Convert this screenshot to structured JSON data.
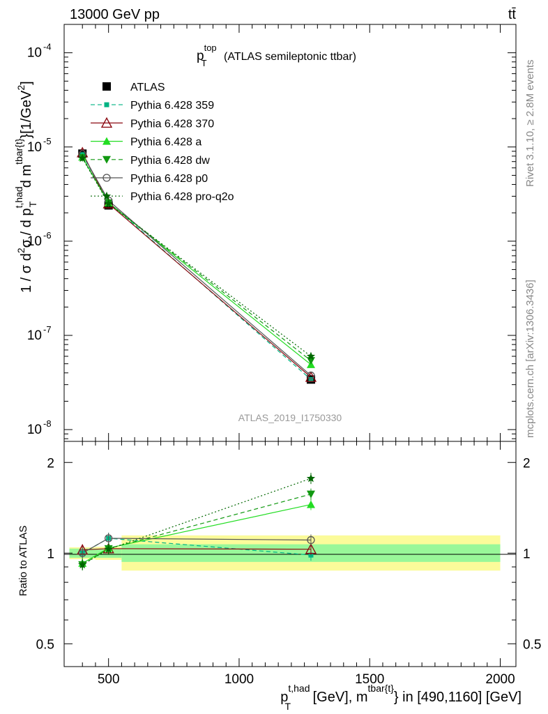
{
  "header": {
    "left": "13000 GeV pp",
    "right": "tt̄"
  },
  "side_labels": {
    "rivet": "Rivet 3.1.10, ≥ 2.8M events",
    "mcplots": "mcplots.cern.ch [arXiv:1306.3436]"
  },
  "watermark": "ATLAS_2019_I1750330",
  "colors": {
    "ATLAS": "#000000",
    "Pythia 6.428 359": "#00b383",
    "Pythia 6.428 370": "#8b0a12",
    "Pythia 6.428 a": "#22dd22",
    "Pythia 6.428 dw": "#119911",
    "Pythia 6.428 p0": "#555555",
    "Pythia 6.428 pro-q2o": "#006600",
    "band_inner": "#99f799",
    "band_outer": "#fbfb9a"
  },
  "chart_data": [
    {
      "type": "line",
      "panel": "main",
      "title_main": "p",
      "title_sup": "top",
      "title_sub": "T",
      "title_rest": "(ATLAS semileptonic ttbar)",
      "ylabel": "1 / σ d²σ / d pT^t,had d m^tbar{t} [1/GeV²]",
      "yscale": "log",
      "ylim": [
        7.5e-09,
        0.0002
      ],
      "xlim": [
        330,
        2060
      ],
      "y_ticks": [
        {
          "value": 1e-08,
          "exp": "-8"
        },
        {
          "value": 1e-07,
          "exp": "-7"
        },
        {
          "value": 1e-06,
          "exp": "-6"
        },
        {
          "value": 1e-05,
          "exp": "-5"
        },
        {
          "value": 0.0001,
          "exp": "-4"
        }
      ],
      "legend_position": "top-left",
      "x": [
        400,
        500,
        1275
      ],
      "series": [
        {
          "name": "ATLAS",
          "values": [
            8.5e-06,
            2.4e-06,
            3.4e-08
          ],
          "marker": "square-filled",
          "line": "none"
        },
        {
          "name": "Pythia 6.428 359",
          "values": [
            8.3e-06,
            2.6e-06,
            3.4e-08
          ],
          "marker": "square-small",
          "line": "dashed"
        },
        {
          "name": "Pythia 6.428 370",
          "values": [
            8.7e-06,
            2.5e-06,
            3.6e-08
          ],
          "marker": "triangle-open",
          "line": "solid"
        },
        {
          "name": "Pythia 6.428 a",
          "values": [
            7.8e-06,
            2.55e-06,
            4.9e-08
          ],
          "marker": "triangle-filled",
          "line": "solid"
        },
        {
          "name": "Pythia 6.428 dw",
          "values": [
            7.7e-06,
            2.55e-06,
            5.4e-08
          ],
          "marker": "triangle-down-filled",
          "line": "dashed"
        },
        {
          "name": "Pythia 6.428 p0",
          "values": [
            8.4e-06,
            2.7e-06,
            3.75e-08
          ],
          "marker": "circle-open",
          "line": "solid"
        },
        {
          "name": "Pythia 6.428 pro-q2o",
          "values": [
            7.6e-06,
            2.5e-06,
            6e-08
          ],
          "marker": "star",
          "line": "dotted"
        }
      ]
    },
    {
      "type": "line",
      "panel": "ratio",
      "ylabel": "Ratio to ATLAS",
      "yscale": "log",
      "ylim": [
        0.42,
        2.35
      ],
      "xlim": [
        330,
        2060
      ],
      "xlabel": "pT^t,had [GeV], m^tbar{t} in [490,1160] [GeV]",
      "xlabel_parts": {
        "p": "p",
        "sup1": "t,had",
        "sub1": "T",
        "mid": "[GeV], m",
        "sup2": "tbar{t}",
        "end": "} in [490,1160] [GeV]"
      },
      "x_ticks": [
        {
          "value": 500,
          "label": "500"
        },
        {
          "value": 1000,
          "label": "1000"
        },
        {
          "value": 1500,
          "label": "1500"
        },
        {
          "value": 2000,
          "label": "2000"
        }
      ],
      "y_ticks": [
        {
          "value": 0.5,
          "label": "0.5"
        },
        {
          "value": 1,
          "label": "1"
        },
        {
          "value": 2,
          "label": "2"
        }
      ],
      "bands": [
        {
          "x0": 350,
          "x1": 450,
          "inner": [
            0.965,
            1.035
          ],
          "outer": [
            0.955,
            1.045
          ]
        },
        {
          "x0": 450,
          "x1": 550,
          "inner": [
            0.965,
            1.035
          ],
          "outer": [
            0.95,
            1.05
          ]
        },
        {
          "x0": 550,
          "x1": 2000,
          "inner": [
            0.935,
            1.07
          ],
          "outer": [
            0.875,
            1.145
          ]
        }
      ],
      "x": [
        400,
        500,
        1275
      ],
      "series": [
        {
          "name": "Pythia 6.428 359",
          "values": [
            1.0,
            1.12,
            0.985
          ]
        },
        {
          "name": "Pythia 6.428 370",
          "values": [
            1.025,
            1.035,
            1.03
          ]
        },
        {
          "name": "Pythia 6.428 a",
          "values": [
            0.925,
            1.04,
            1.45
          ]
        },
        {
          "name": "Pythia 6.428 dw",
          "values": [
            0.915,
            1.035,
            1.57
          ]
        },
        {
          "name": "Pythia 6.428 p0",
          "values": [
            1.0,
            1.12,
            1.105
          ]
        },
        {
          "name": "Pythia 6.428 pro-q2o",
          "values": [
            0.915,
            1.03,
            1.77
          ]
        }
      ]
    }
  ]
}
